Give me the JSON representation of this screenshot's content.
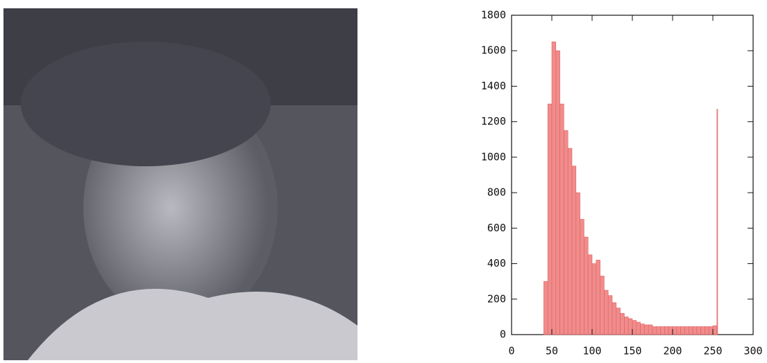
{
  "chart_data": {
    "type": "histogram",
    "bins": [
      0,
      40,
      45,
      50,
      55,
      60,
      65,
      70,
      75,
      80,
      85,
      90,
      95,
      100,
      105,
      110,
      115,
      120,
      125,
      130,
      135,
      140,
      145,
      150,
      155,
      160,
      165,
      170,
      175,
      180,
      185,
      190,
      195,
      200,
      205,
      210,
      215,
      220,
      225,
      230,
      235,
      240,
      245,
      250,
      255,
      256
    ],
    "counts": [
      0,
      300,
      1300,
      1650,
      1600,
      1300,
      1150,
      1050,
      950,
      800,
      650,
      550,
      450,
      400,
      420,
      330,
      250,
      220,
      180,
      150,
      120,
      100,
      90,
      80,
      70,
      60,
      55,
      55,
      45,
      45,
      45,
      45,
      45,
      45,
      45,
      45,
      45,
      45,
      45,
      45,
      45,
      45,
      45,
      50,
      1270
    ],
    "color": "#ee7f7f",
    "xlim": [
      0,
      300
    ],
    "xticks": [
      0,
      50,
      100,
      150,
      200,
      250,
      300
    ],
    "ylim": [
      0,
      1800
    ],
    "yticks": [
      0,
      200,
      400,
      600,
      800,
      1000,
      1200,
      1400,
      1600,
      1800
    ]
  }
}
